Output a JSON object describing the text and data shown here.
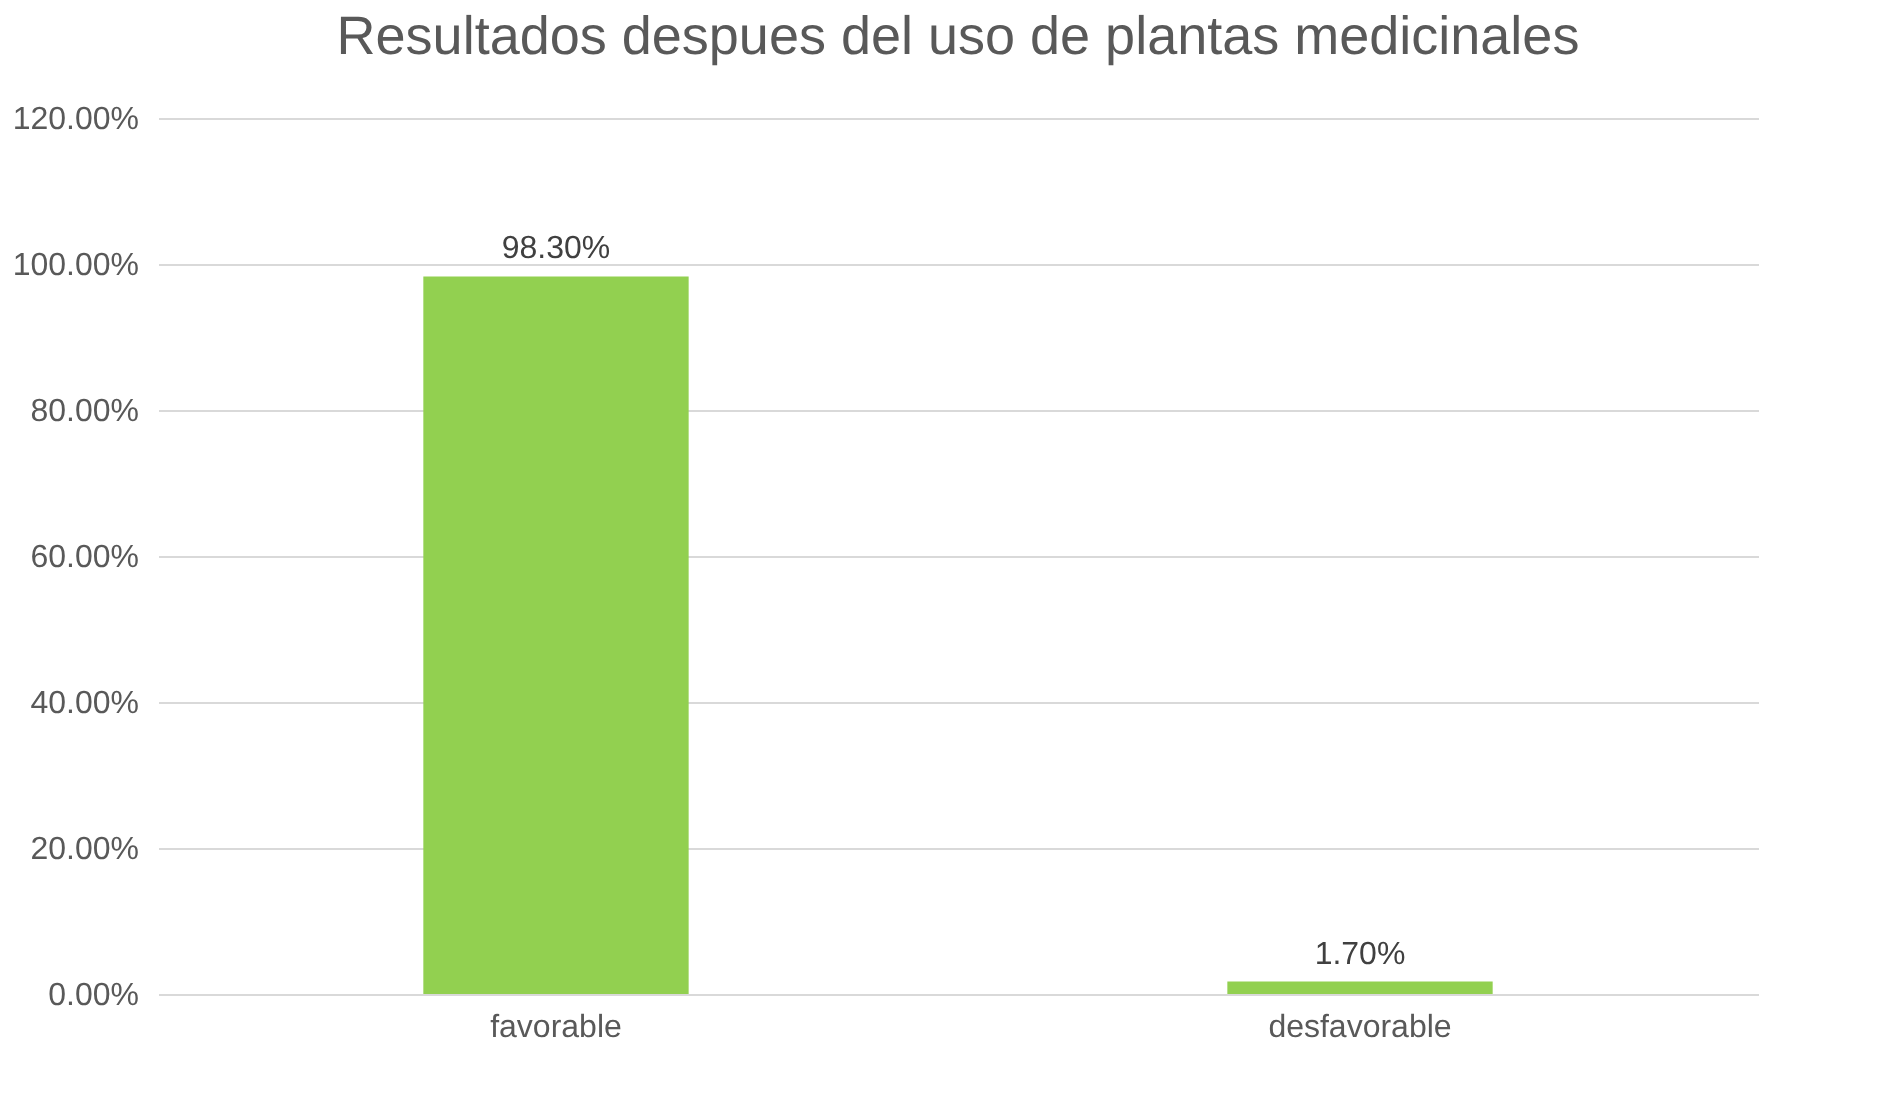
{
  "chart_data": {
    "type": "bar",
    "title": "Resultados despues del uso de plantas medicinales",
    "categories": [
      "favorable",
      "desfavorable"
    ],
    "values": [
      98.3,
      1.7
    ],
    "value_labels": [
      "98.30%",
      "1.70%"
    ],
    "color": "#92d050",
    "ylim": [
      0,
      120
    ],
    "yticks": [
      {
        "value": 0,
        "label": "0.00%"
      },
      {
        "value": 20,
        "label": "20.00%"
      },
      {
        "value": 40,
        "label": "40.00%"
      },
      {
        "value": 60,
        "label": "60.00%"
      },
      {
        "value": 80,
        "label": "80.00%"
      },
      {
        "value": 100,
        "label": "100.00%"
      },
      {
        "value": 120,
        "label": "120.00%"
      }
    ],
    "grid": "y"
  }
}
